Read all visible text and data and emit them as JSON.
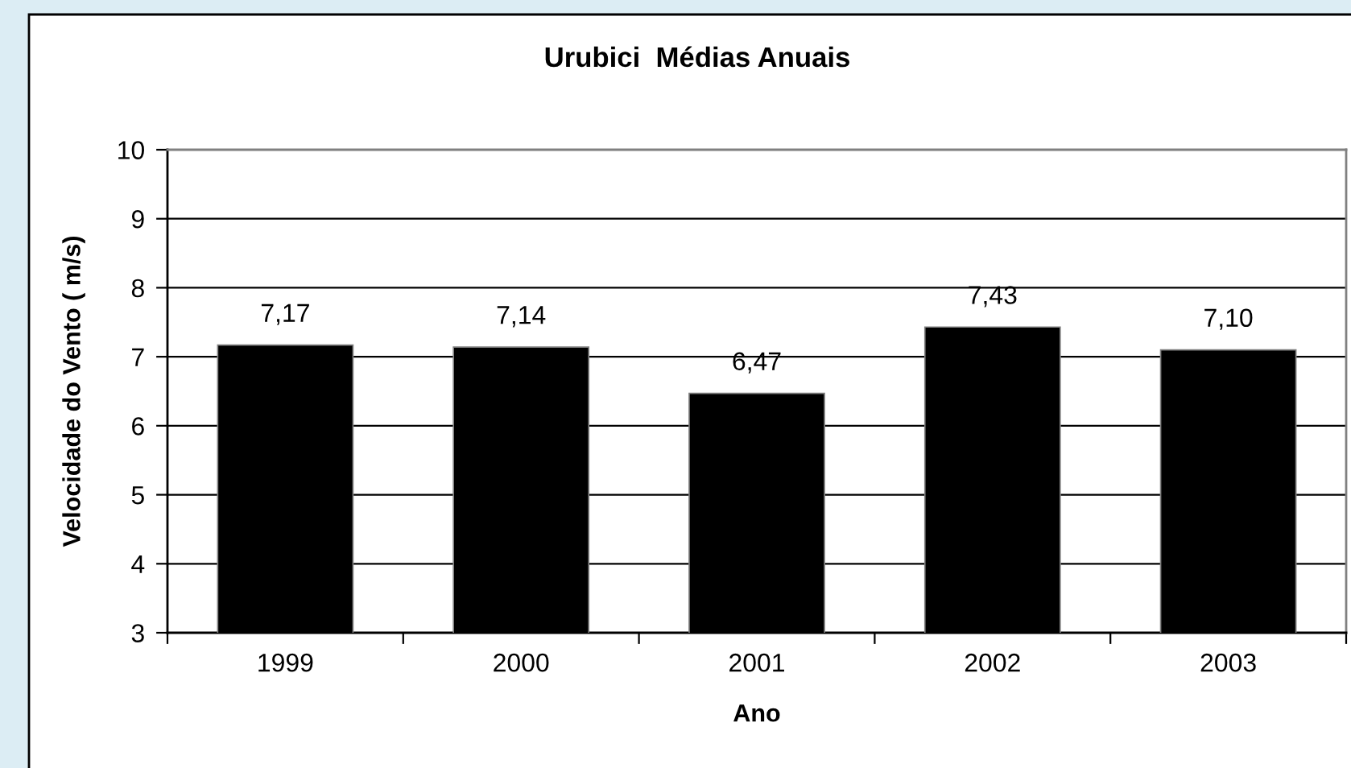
{
  "chart_data": {
    "type": "bar",
    "title": "Urubici  Médias Anuais",
    "xlabel": "Ano",
    "ylabel": "Velocidade do Vento ( m/s)",
    "categories": [
      "1999",
      "2000",
      "2001",
      "2002",
      "2003"
    ],
    "values": [
      7.17,
      7.14,
      6.47,
      7.43,
      7.1
    ],
    "value_labels": [
      "7,17",
      "7,14",
      "6,47",
      "7,43",
      "7,10"
    ],
    "color": "#000000",
    "ylim": [
      3,
      10
    ],
    "yticks": [
      3,
      4,
      5,
      6,
      7,
      8,
      9,
      10
    ],
    "grid": "y",
    "legend": false
  }
}
